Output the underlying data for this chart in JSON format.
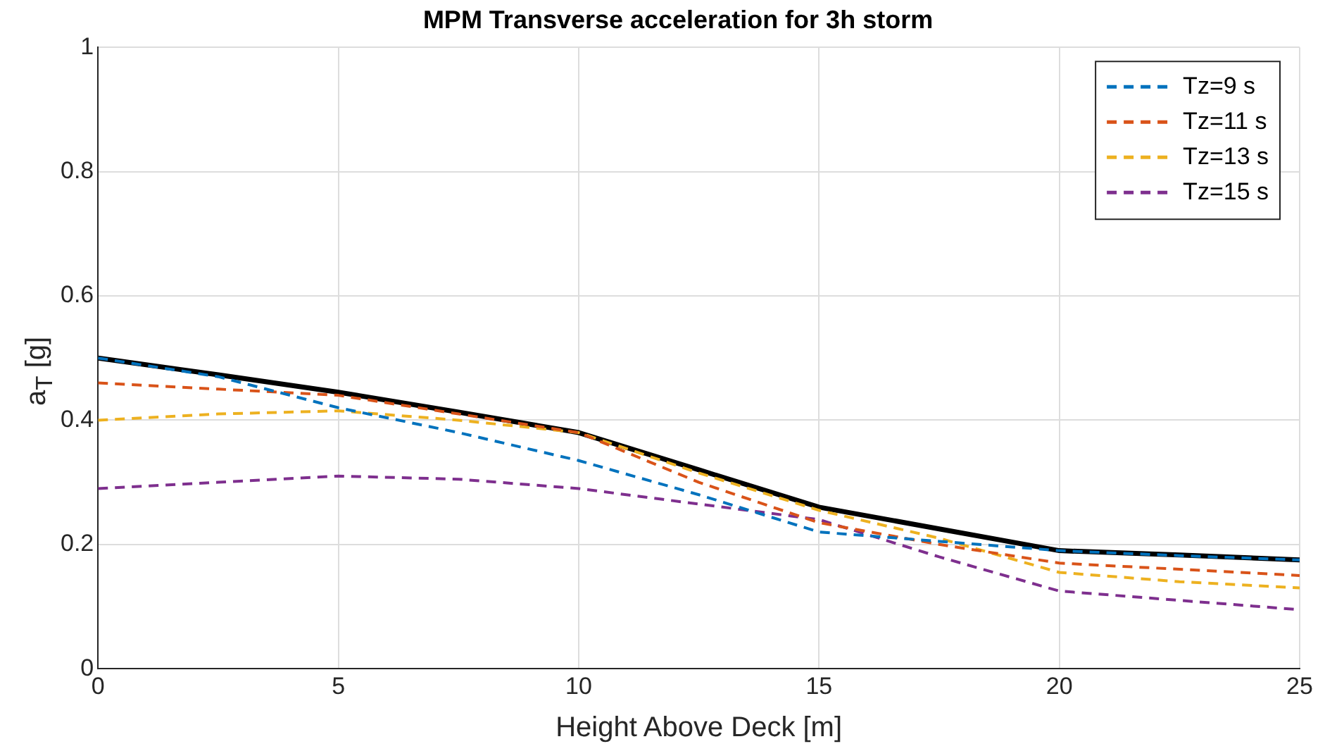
{
  "chart_data": {
    "type": "line",
    "title": "MPM Transverse acceleration for 3h storm",
    "xlabel": "Height Above Deck [m]",
    "ylabel": "a$_{T}$ [g]",
    "x": [
      0,
      2.5,
      5,
      7.5,
      10,
      12.5,
      15,
      17.5,
      20,
      22.5,
      25
    ],
    "series": [
      {
        "name": "Tz=9 s",
        "color": "#0072bd",
        "line_style": "dashed",
        "values": [
          0.5,
          0.47,
          0.42,
          0.38,
          0.335,
          0.28,
          0.22,
          0.205,
          0.19,
          0.182,
          0.175
        ]
      },
      {
        "name": "Tz=11 s",
        "color": "#d95319",
        "line_style": "dashed",
        "values": [
          0.46,
          0.45,
          0.44,
          0.41,
          0.38,
          0.3,
          0.235,
          0.2,
          0.17,
          0.16,
          0.15
        ]
      },
      {
        "name": "Tz=13 s",
        "color": "#edb120",
        "line_style": "dashed",
        "values": [
          0.4,
          0.41,
          0.415,
          0.4,
          0.38,
          0.315,
          0.255,
          0.21,
          0.155,
          0.14,
          0.13
        ]
      },
      {
        "name": "Tz=15 s",
        "color": "#7e2f8e",
        "line_style": "dashed",
        "values": [
          0.29,
          0.3,
          0.31,
          0.305,
          0.29,
          0.265,
          0.24,
          0.18,
          0.125,
          0.11,
          0.095
        ]
      },
      {
        "color": "#000000",
        "line_style": "solid",
        "values": [
          0.5,
          0.473,
          0.445,
          0.413,
          0.38,
          0.32,
          0.26,
          0.225,
          0.19,
          0.183,
          0.175
        ]
      }
    ],
    "xlim": [
      0,
      25
    ],
    "xticks": [
      0,
      5,
      10,
      15,
      20,
      25
    ],
    "ylim": [
      0,
      1
    ],
    "yticks": [
      0,
      0.2,
      0.4,
      0.6,
      0.8,
      1
    ],
    "grid": true,
    "legend": "top right",
    "marker": "none"
  }
}
